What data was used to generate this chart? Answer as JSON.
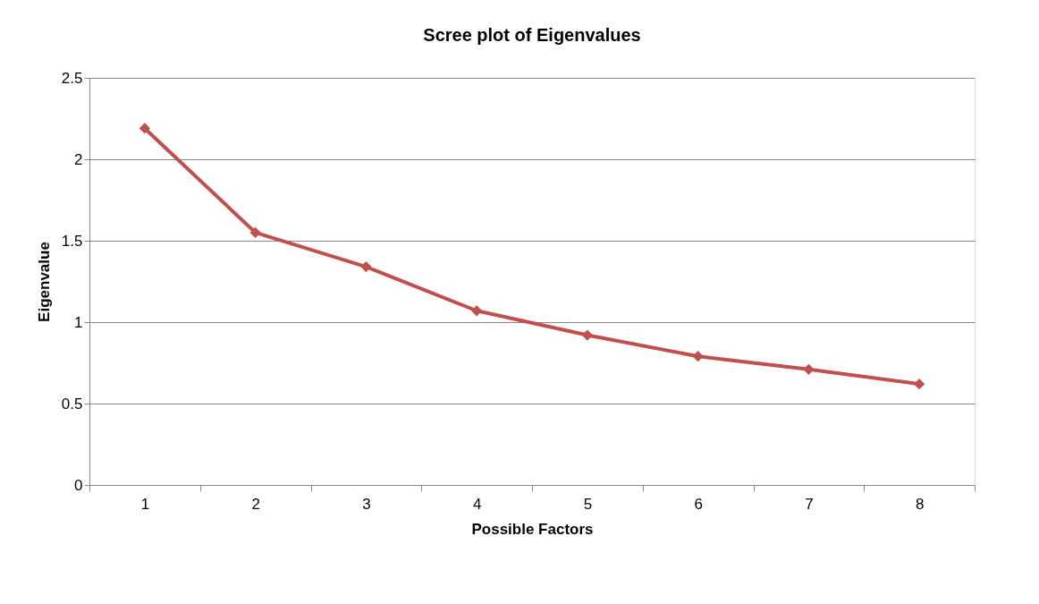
{
  "chart_data": {
    "type": "line",
    "title": "Scree plot of Eigenvalues",
    "xlabel": "Possible Factors",
    "ylabel": "Eigenvalue",
    "categories": [
      "1",
      "2",
      "3",
      "4",
      "5",
      "6",
      "7",
      "8"
    ],
    "series": [
      {
        "color": "#c0504d",
        "values": [
          2.19,
          1.55,
          1.34,
          1.07,
          0.92,
          0.79,
          0.71,
          0.62
        ]
      }
    ],
    "ylim": [
      0,
      2.5
    ],
    "yticks": [
      0,
      0.5,
      1,
      1.5,
      2,
      2.5
    ],
    "grid": "y",
    "marker": "diamond",
    "line_style": "solid"
  }
}
